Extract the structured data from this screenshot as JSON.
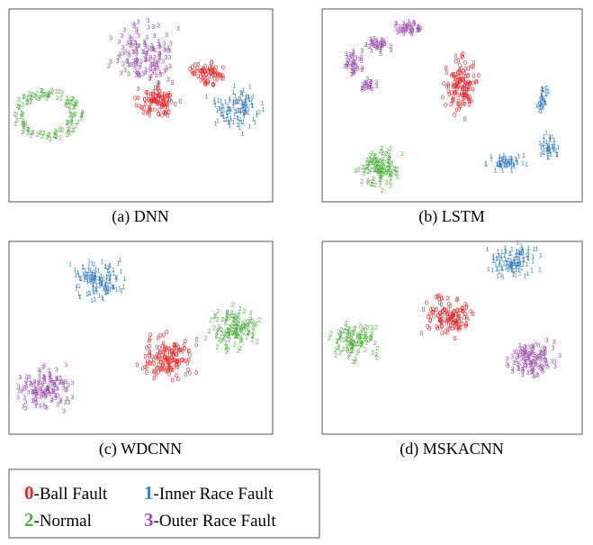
{
  "panels": [
    {
      "caption": "(a) DNN"
    },
    {
      "caption": "(b) LSTM"
    },
    {
      "caption": "(c) WDCNN"
    },
    {
      "caption": "(d) MSKACNN"
    }
  ],
  "legend": [
    {
      "digit": "0",
      "label": "-Ball Fault",
      "color": "#e8262b"
    },
    {
      "digit": "1",
      "label": "-Inner Race Fault",
      "color": "#3a80c0"
    },
    {
      "digit": "2",
      "label": "-Normal",
      "color": "#4caf3f"
    },
    {
      "digit": "3",
      "label": "-Outer Race Fault",
      "color": "#9b4fb0"
    }
  ]
}
